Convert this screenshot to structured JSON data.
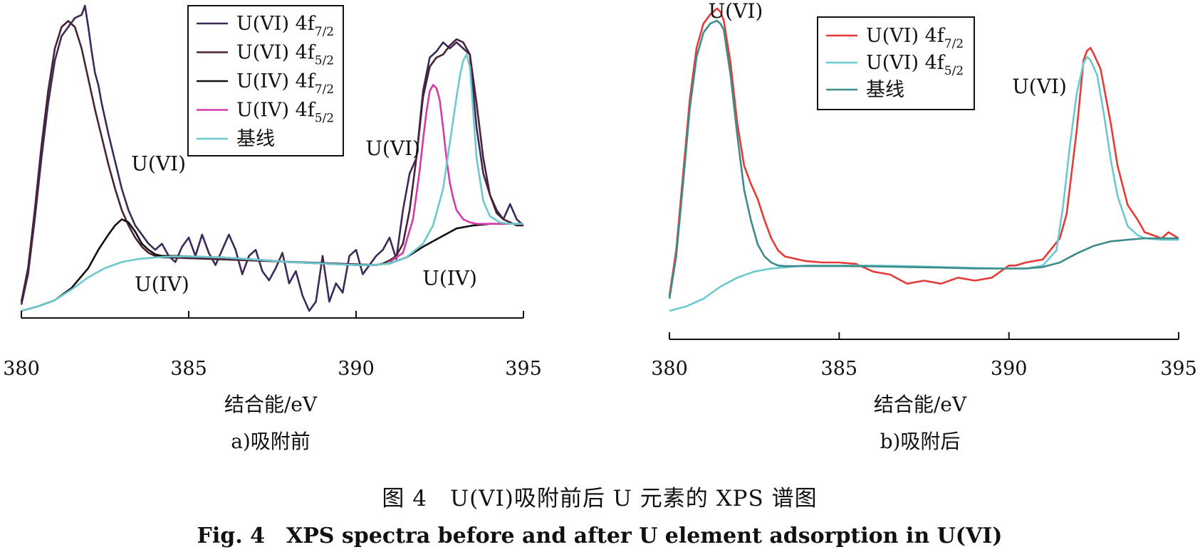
{
  "chart_data": [
    {
      "type": "line",
      "panel_label": "a)吸附前",
      "xlabel": "结合能/eV",
      "ylabel": "",
      "xlim": [
        380,
        395
      ],
      "xticks": [
        380,
        385,
        390,
        395
      ],
      "legend": {
        "placement": "top-center",
        "entries": [
          {
            "main": "U(VI) 4f",
            "sub": "7/2",
            "color": "#3d2a5a"
          },
          {
            "main": "U(VI) 4f",
            "sub": "5/2",
            "color": "#4a2238"
          },
          {
            "main": "U(IV) 4f",
            "sub": "7/2",
            "color": "#111111"
          },
          {
            "main": "U(IV) 4f",
            "sub": "5/2",
            "color": "#d63aa6"
          },
          {
            "main": "基线",
            "sub": "",
            "color": "#6cc9cf"
          }
        ]
      },
      "annotations": [
        {
          "text": "U(VI)",
          "x": 384.1,
          "y": 0.46
        },
        {
          "text": "U(IV)",
          "x": 384.2,
          "y": 0.065
        },
        {
          "text": "U(VI)",
          "x": 391.1,
          "y": 0.51
        },
        {
          "text": "U(IV)",
          "x": 392.8,
          "y": 0.085
        }
      ],
      "series": [
        {
          "color": "#3d2a5a",
          "x": [
            380.0,
            380.2,
            380.4,
            380.6,
            380.8,
            381.0,
            381.2,
            381.4,
            381.6,
            381.8,
            381.9,
            382.0,
            382.1,
            382.2,
            382.3,
            382.4,
            382.6,
            382.8,
            383.0,
            383.2,
            383.4,
            383.6,
            383.8,
            384.0,
            384.2,
            384.4,
            384.6,
            384.8,
            385.0,
            385.2,
            385.4,
            385.6,
            385.8,
            386.0,
            386.2,
            386.4,
            386.6,
            386.8,
            387.0,
            387.2,
            387.4,
            387.6,
            387.8,
            388.0,
            388.2,
            388.4,
            388.6,
            388.8,
            389.0,
            389.2,
            389.4,
            389.6,
            389.8,
            390.0,
            390.2,
            390.4,
            390.6,
            390.8,
            391.0,
            391.2,
            391.4,
            391.6,
            391.8,
            392.0,
            392.2,
            392.4,
            392.6,
            392.8,
            393.0,
            393.2,
            393.3,
            393.4,
            393.6,
            393.8,
            394.0,
            394.2,
            394.4,
            394.6,
            394.8,
            395.0
          ],
          "y": [
            0.02,
            0.12,
            0.3,
            0.5,
            0.68,
            0.82,
            0.9,
            0.93,
            0.96,
            0.97,
            1.0,
            0.93,
            0.85,
            0.78,
            0.74,
            0.68,
            0.58,
            0.49,
            0.4,
            0.33,
            0.28,
            0.25,
            0.22,
            0.2,
            0.22,
            0.18,
            0.16,
            0.21,
            0.24,
            0.18,
            0.25,
            0.19,
            0.15,
            0.2,
            0.25,
            0.2,
            0.12,
            0.18,
            0.2,
            0.13,
            0.1,
            0.14,
            0.19,
            0.09,
            0.13,
            0.05,
            0.0,
            0.03,
            0.18,
            0.03,
            0.09,
            0.06,
            0.18,
            0.2,
            0.12,
            0.15,
            0.18,
            0.2,
            0.24,
            0.17,
            0.33,
            0.45,
            0.5,
            0.72,
            0.83,
            0.85,
            0.88,
            0.86,
            0.88,
            0.86,
            0.85,
            0.84,
            0.6,
            0.45,
            0.38,
            0.33,
            0.3,
            0.35,
            0.3,
            0.28
          ]
        },
        {
          "color": "#4a2238",
          "x": [
            380.0,
            380.2,
            380.4,
            380.6,
            380.8,
            381.0,
            381.2,
            381.4,
            381.6,
            381.8,
            382.0,
            382.2,
            382.4,
            382.6,
            382.8,
            383.0,
            383.2,
            383.4,
            383.6,
            383.8,
            384.0,
            384.2,
            384.4,
            390.6,
            390.8,
            391.0,
            391.2,
            391.4,
            391.6,
            391.8,
            392.0,
            392.2,
            392.4,
            392.6,
            392.8,
            393.0,
            393.2,
            393.4,
            393.6,
            393.8,
            394.0,
            394.2,
            394.4,
            394.6,
            394.8,
            395.0
          ],
          "y": [
            0.03,
            0.14,
            0.33,
            0.54,
            0.72,
            0.86,
            0.93,
            0.95,
            0.93,
            0.86,
            0.76,
            0.66,
            0.57,
            0.48,
            0.4,
            0.33,
            0.28,
            0.24,
            0.21,
            0.19,
            0.18,
            0.175,
            0.175,
            0.15,
            0.155,
            0.165,
            0.18,
            0.22,
            0.33,
            0.5,
            0.7,
            0.8,
            0.83,
            0.84,
            0.87,
            0.89,
            0.88,
            0.84,
            0.68,
            0.5,
            0.38,
            0.32,
            0.3,
            0.29,
            0.28,
            0.28
          ]
        },
        {
          "color": "#111111",
          "x": [
            380.0,
            380.5,
            381.0,
            381.5,
            382.0,
            382.3,
            382.6,
            382.8,
            383.0,
            383.2,
            383.4,
            383.6,
            383.8,
            384.0,
            384.2,
            384.4,
            384.6,
            385.0,
            386.0,
            387.0,
            388.0,
            389.0,
            390.0,
            390.5,
            391.0,
            391.5,
            392.0,
            392.5,
            393.0,
            393.5,
            394.0,
            394.5,
            395.0
          ],
          "y": [
            0.0,
            0.015,
            0.035,
            0.075,
            0.14,
            0.2,
            0.25,
            0.28,
            0.3,
            0.29,
            0.26,
            0.22,
            0.2,
            0.185,
            0.18,
            0.18,
            0.18,
            0.178,
            0.175,
            0.168,
            0.16,
            0.155,
            0.15,
            0.15,
            0.155,
            0.175,
            0.21,
            0.24,
            0.27,
            0.28,
            0.285,
            0.285,
            0.285
          ]
        },
        {
          "color": "#d63aa6",
          "x": [
            391.0,
            391.4,
            391.7,
            391.9,
            392.0,
            392.1,
            392.2,
            392.3,
            392.4,
            392.5,
            392.6,
            392.7,
            392.8,
            392.9,
            393.0,
            393.2,
            393.4,
            393.6,
            393.8,
            394.0,
            394.3,
            394.6,
            395.0
          ],
          "y": [
            0.16,
            0.19,
            0.3,
            0.46,
            0.56,
            0.65,
            0.72,
            0.74,
            0.73,
            0.69,
            0.6,
            0.5,
            0.42,
            0.37,
            0.33,
            0.3,
            0.29,
            0.285,
            0.285,
            0.285,
            0.285,
            0.285,
            0.285
          ]
        },
        {
          "color": "#6cc9cf",
          "x": [
            380.0,
            380.5,
            381.0,
            381.5,
            382.0,
            382.5,
            383.0,
            383.5,
            384.0,
            384.5,
            385.0,
            386.0,
            387.0,
            388.0,
            389.0,
            390.0,
            390.5,
            391.0,
            391.5,
            392.0,
            392.3,
            392.6,
            392.8,
            393.0,
            393.1,
            393.2,
            393.3,
            393.4,
            393.5,
            393.6,
            393.8,
            394.0,
            394.3,
            394.6,
            395.0
          ],
          "y": [
            0.0,
            0.015,
            0.035,
            0.07,
            0.11,
            0.14,
            0.16,
            0.17,
            0.175,
            0.178,
            0.178,
            0.175,
            0.168,
            0.16,
            0.155,
            0.15,
            0.15,
            0.155,
            0.175,
            0.22,
            0.28,
            0.4,
            0.55,
            0.7,
            0.77,
            0.82,
            0.84,
            0.8,
            0.65,
            0.5,
            0.36,
            0.31,
            0.29,
            0.285,
            0.285
          ]
        }
      ]
    },
    {
      "type": "line",
      "panel_label": "b)吸附后",
      "xlabel": "结合能/eV",
      "ylabel": "",
      "xlim": [
        380,
        395
      ],
      "xticks": [
        380,
        385,
        390,
        395
      ],
      "legend": {
        "placement": "top-center",
        "entries": [
          {
            "main": "U(VI) 4f",
            "sub": "7/2",
            "color": "#e53b36"
          },
          {
            "main": "U(VI) 4f",
            "sub": "5/2",
            "color": "#6cc9cf"
          },
          {
            "main": "基线",
            "sub": "",
            "color": "#3d8b8a"
          }
        ]
      },
      "annotations": [
        {
          "text": "U(VI)",
          "x": 381.95,
          "y": 0.97
        },
        {
          "text": "U(VI)",
          "x": 390.9,
          "y": 0.72
        }
      ],
      "series": [
        {
          "color": "#e53b36",
          "x": [
            380.0,
            380.2,
            380.4,
            380.6,
            380.8,
            381.0,
            381.2,
            381.4,
            381.5,
            381.6,
            381.8,
            382.0,
            382.2,
            382.4,
            382.6,
            382.8,
            383.0,
            383.2,
            383.4,
            383.6,
            383.8,
            384.0,
            384.5,
            385.0,
            385.5,
            386.0,
            386.5,
            387.0,
            387.5,
            388.0,
            388.5,
            389.0,
            389.5,
            390.0,
            390.2,
            390.5,
            391.0,
            391.5,
            391.7,
            392.0,
            392.2,
            392.3,
            392.4,
            392.5,
            392.7,
            393.0,
            393.2,
            393.5,
            393.8,
            394.0,
            394.5,
            394.7,
            395.0
          ],
          "y": [
            0.05,
            0.2,
            0.45,
            0.7,
            0.87,
            0.95,
            0.98,
            1.0,
            0.99,
            0.96,
            0.82,
            0.62,
            0.48,
            0.42,
            0.37,
            0.3,
            0.24,
            0.2,
            0.18,
            0.175,
            0.17,
            0.165,
            0.16,
            0.16,
            0.155,
            0.13,
            0.12,
            0.09,
            0.1,
            0.09,
            0.11,
            0.1,
            0.11,
            0.15,
            0.15,
            0.16,
            0.17,
            0.24,
            0.32,
            0.6,
            0.83,
            0.86,
            0.87,
            0.85,
            0.8,
            0.62,
            0.48,
            0.35,
            0.3,
            0.26,
            0.24,
            0.26,
            0.24
          ]
        },
        {
          "color": "#6cc9cf",
          "x": [
            380.0,
            380.5,
            381.0,
            381.5,
            382.0,
            382.5,
            383.0,
            383.5,
            384.0,
            385.0,
            386.0,
            387.0,
            388.0,
            389.0,
            390.0,
            390.5,
            391.0,
            391.4,
            391.6,
            391.8,
            392.0,
            392.2,
            392.3,
            392.4,
            392.6,
            392.8,
            393.0,
            393.2,
            393.5,
            393.8,
            394.0,
            394.5,
            395.0
          ],
          "y": [
            0.0,
            0.015,
            0.04,
            0.08,
            0.11,
            0.13,
            0.14,
            0.145,
            0.15,
            0.15,
            0.15,
            0.148,
            0.145,
            0.142,
            0.14,
            0.14,
            0.15,
            0.2,
            0.35,
            0.55,
            0.72,
            0.82,
            0.84,
            0.83,
            0.78,
            0.65,
            0.5,
            0.38,
            0.28,
            0.25,
            0.24,
            0.235,
            0.235
          ]
        },
        {
          "color": "#3d8b8a",
          "x": [
            380.0,
            380.2,
            380.4,
            380.6,
            380.8,
            381.0,
            381.2,
            381.4,
            381.5,
            381.6,
            381.8,
            382.0,
            382.2,
            382.4,
            382.6,
            382.8,
            383.0,
            383.2,
            383.4,
            383.6,
            384.0,
            385.0,
            386.0,
            387.0,
            388.0,
            389.0,
            390.0,
            390.5,
            391.0,
            391.5,
            392.0,
            392.5,
            393.0,
            393.5,
            394.0,
            394.5,
            395.0
          ],
          "y": [
            0.04,
            0.18,
            0.42,
            0.67,
            0.84,
            0.92,
            0.95,
            0.96,
            0.95,
            0.93,
            0.78,
            0.58,
            0.4,
            0.3,
            0.22,
            0.18,
            0.16,
            0.15,
            0.148,
            0.148,
            0.148,
            0.148,
            0.147,
            0.145,
            0.143,
            0.14,
            0.14,
            0.14,
            0.145,
            0.16,
            0.19,
            0.215,
            0.23,
            0.235,
            0.24,
            0.24,
            0.24
          ]
        }
      ]
    }
  ],
  "caption": {
    "zh": "图 4　U(VI)吸附前后 U 元素的 XPS 谱图",
    "en": "Fig. 4　XPS spectra before and after U element adsorption in U(VI)"
  }
}
